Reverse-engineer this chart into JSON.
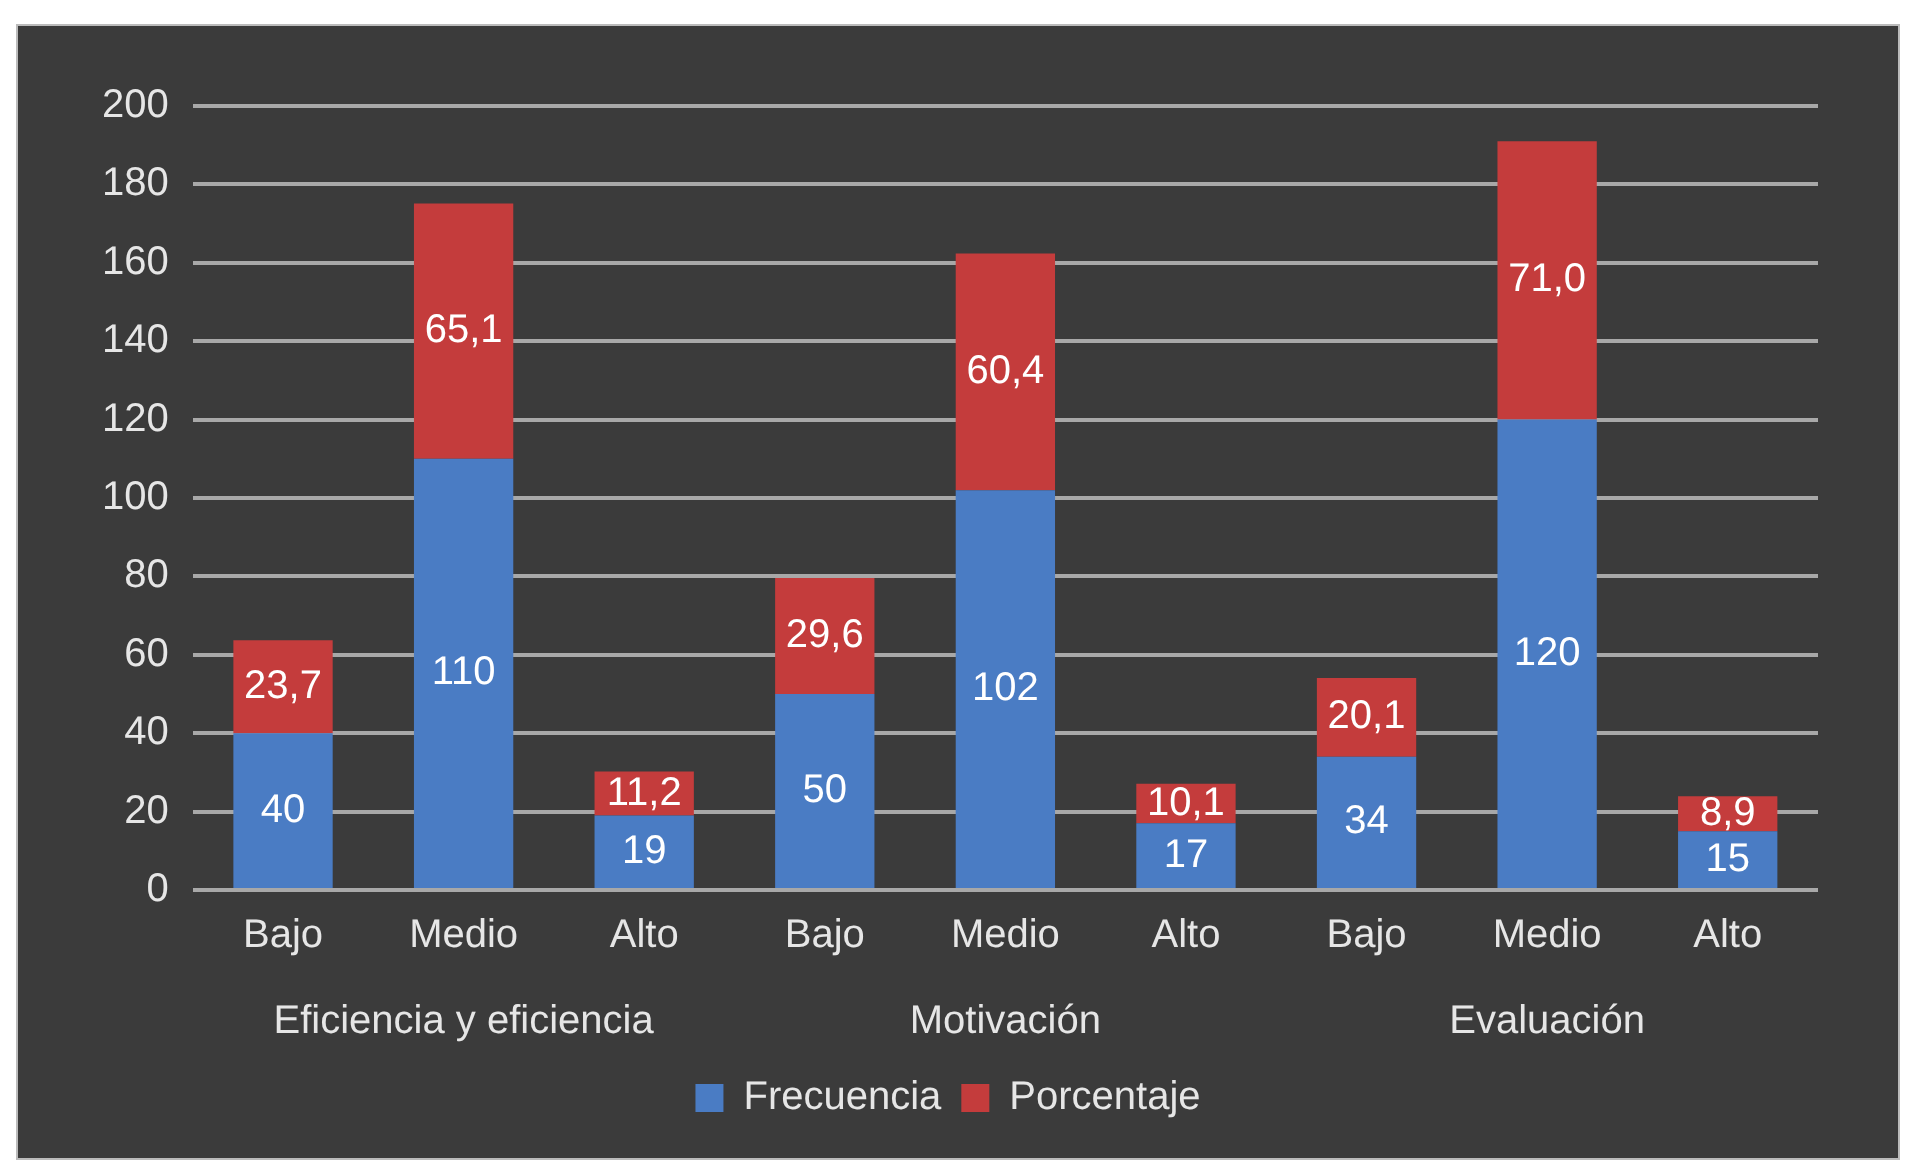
{
  "chart_data": {
    "type": "bar",
    "stacked": true,
    "categories": [
      "Bajo",
      "Medio",
      "Alto",
      "Bajo",
      "Medio",
      "Alto",
      "Bajo",
      "Medio",
      "Alto"
    ],
    "annotations": [
      "Eficiencia y eficiencia",
      "Motivación",
      "Evaluación"
    ],
    "series": [
      {
        "name": "Frecuencia",
        "color": "#4a7cc4",
        "values": [
          40,
          110,
          19,
          50,
          102,
          17,
          34,
          120,
          15
        ],
        "value_labels": [
          "40",
          "110",
          "19",
          "50",
          "102",
          "17",
          "34",
          "120",
          "15"
        ]
      },
      {
        "name": "Porcentaje",
        "color": "#c43c3c",
        "values": [
          23.7,
          65.1,
          11.2,
          29.6,
          60.4,
          10.1,
          20.1,
          71.0,
          8.9
        ],
        "value_labels": [
          "23,7",
          "65,1",
          "11,2",
          "29,6",
          "60,4",
          "10,1",
          "20,1",
          "71,0",
          "8,9"
        ]
      }
    ],
    "ylim": [
      0,
      200
    ],
    "yticks": [
      0,
      20,
      40,
      60,
      80,
      100,
      120,
      140,
      160,
      180,
      200
    ],
    "grid": "y",
    "legend": "bottom"
  }
}
